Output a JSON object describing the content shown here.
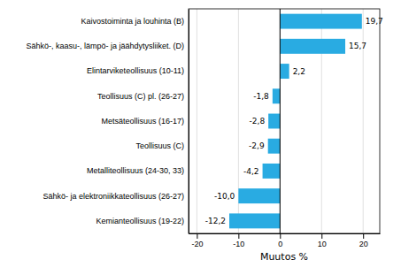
{
  "chart_data": {
    "type": "bar",
    "orientation": "horizontal",
    "categories": [
      "Kemianteollisuus (19-22)",
      "Sähkö- ja elektroniikkateollisuus (26-27)",
      "Metalliteollisuus (24-30, 33)",
      "Teollisuus (C)",
      "Metsäteollisuus (16-17)",
      "Teollisuus (C) pl. (26-27)",
      "Elintarviketeollisuus (10-11)",
      "Sähkö-, kaasu-, lämpö- ja jäähdytysliiket. (D)",
      "Kaivostoiminta  ja louhinta (B)"
    ],
    "values": [
      -12.2,
      -10.0,
      -4.2,
      -2.9,
      -2.8,
      -1.8,
      2.2,
      15.7,
      19.7
    ],
    "value_labels": [
      "-12,2",
      "-10,0",
      "-4,2",
      "-2,9",
      "-2,8",
      "-1,8",
      "2,2",
      "15,7",
      "19,7"
    ],
    "data_labels": true,
    "color": "#29ABE2",
    "xlim": [
      -22,
      24
    ],
    "xticks": [
      -20,
      -10,
      0,
      10,
      20
    ],
    "xlabel": "Muutos %",
    "grid": true
  }
}
